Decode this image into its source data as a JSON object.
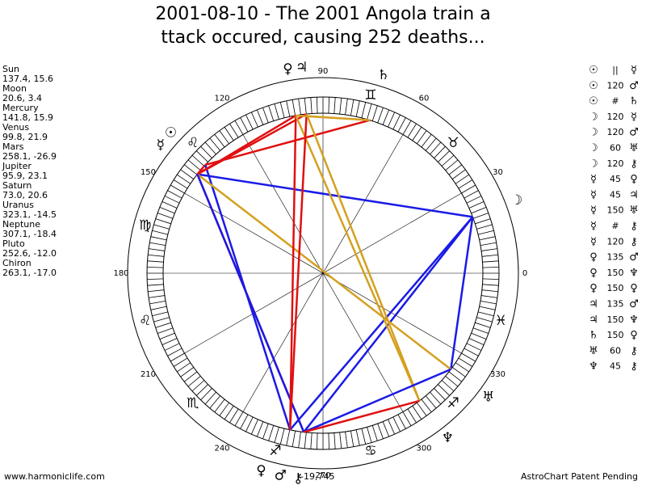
{
  "header": {
    "title_lines": [
      "2001-08-10 - The 2001 Angola train a",
      "ttack occured, causing 252 deaths..."
    ]
  },
  "planets": [
    {
      "name": "Sun",
      "glyph": "☉",
      "coords": "137.4, 15.6"
    },
    {
      "name": "Moon",
      "glyph": "☽",
      "coords": "20.6, 3.4"
    },
    {
      "name": "Mercury",
      "glyph": "☿",
      "coords": "141.8, 15.9"
    },
    {
      "name": "Venus",
      "glyph": "♀",
      "coords": "99.8, 21.9"
    },
    {
      "name": "Mars",
      "glyph": "♂",
      "coords": "258.1, -26.9"
    },
    {
      "name": "Jupiter",
      "glyph": "♃",
      "coords": "95.9, 23.1"
    },
    {
      "name": "Saturn",
      "glyph": "♄",
      "coords": "73.0, 20.6"
    },
    {
      "name": "Uranus",
      "glyph": "♅",
      "coords": "323.1, -14.5"
    },
    {
      "name": "Neptune",
      "glyph": "♆",
      "coords": "307.1, -18.4"
    },
    {
      "name": "Pluto",
      "glyph": "♀",
      "coords": "252.6, -12.0"
    },
    {
      "name": "Chiron",
      "glyph": "⚷",
      "coords": "263.1, -17.0"
    }
  ],
  "aspects": [
    {
      "a": "☉",
      "asp": "||",
      "b": "☿",
      "color": "#e01010"
    },
    {
      "a": "☉",
      "asp": "120",
      "b": "♂",
      "color": "#1a1ae6"
    },
    {
      "a": "☉",
      "asp": "#",
      "b": "♄",
      "color": "#e01010"
    },
    {
      "a": "☽",
      "asp": "120",
      "b": "☿",
      "color": "#1a1ae6"
    },
    {
      "a": "☽",
      "asp": "120",
      "b": "♂",
      "color": "#1a1ae6"
    },
    {
      "a": "☽",
      "asp": "60",
      "b": "♅",
      "color": "#1a1ae6"
    },
    {
      "a": "☽",
      "asp": "120",
      "b": "⚷",
      "color": "#1a1ae6"
    },
    {
      "a": "☿",
      "asp": "45",
      "b": "♀",
      "color": "#e01010"
    },
    {
      "a": "☿",
      "asp": "45",
      "b": "♃",
      "color": "#e01010"
    },
    {
      "a": "☿",
      "asp": "150",
      "b": "♅",
      "color": "#d4a020"
    },
    {
      "a": "☿",
      "asp": "#",
      "b": "⚷",
      "color": "#e01010"
    },
    {
      "a": "☿",
      "asp": "120",
      "b": "⚷",
      "color": "#1a1ae6"
    },
    {
      "a": "♀",
      "asp": "135",
      "b": "♂",
      "color": "#e01010"
    },
    {
      "a": "♀",
      "asp": "150",
      "b": "♆",
      "color": "#d4a020"
    },
    {
      "a": "♀",
      "asp": "150",
      "b": "♀",
      "color": "#d4a020"
    },
    {
      "a": "♃",
      "asp": "135",
      "b": "♂",
      "color": "#e01010"
    },
    {
      "a": "♃",
      "asp": "150",
      "b": "♆",
      "color": "#d4a020"
    },
    {
      "a": "♄",
      "asp": "150",
      "b": "♀",
      "color": "#d4a020"
    },
    {
      "a": "♅",
      "asp": "60",
      "b": "⚷",
      "color": "#1a1ae6"
    },
    {
      "a": "♆",
      "asp": "45",
      "b": "⚷",
      "color": "#e01010"
    }
  ],
  "degrees": [
    0,
    30,
    60,
    90,
    120,
    150,
    180,
    210,
    240,
    270,
    300,
    330
  ],
  "zodiac": [
    "♓",
    "♉",
    "♊",
    "♌",
    "♍",
    "♌",
    "♏",
    "♐",
    "♋",
    "♐"
  ],
  "ascendant_note": "-19,745",
  "footer": {
    "left": "www.harmoniclife.com",
    "right": "AstroChart Patent Pending"
  }
}
